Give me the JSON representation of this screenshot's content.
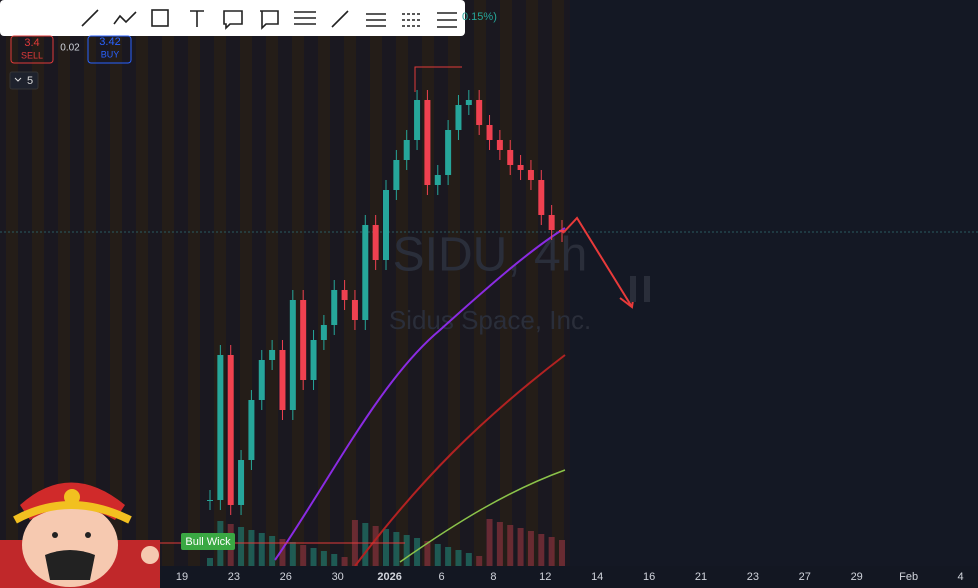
{
  "toolbar": {
    "change": "0.15%)"
  },
  "trade": {
    "sell_price": "3.4",
    "sell_label": "SELL",
    "spread": "0.02",
    "buy_price": "3.42",
    "buy_label": "BUY",
    "interval_menu": "5"
  },
  "watermark": {
    "symbol": "SIDU, 4h",
    "company": "Sidus Space, Inc."
  },
  "annotation": "Bull Wick",
  "chart": {
    "closes": [
      0.74,
      2.19,
      0.69,
      1.14,
      1.74,
      2.14,
      2.24,
      1.64,
      2.74,
      1.94,
      2.34,
      2.49,
      2.84,
      2.74,
      2.54,
      3.49,
      3.14,
      3.84,
      4.14,
      4.34,
      4.74,
      3.89,
      3.99,
      4.44,
      4.69,
      4.74,
      4.49,
      4.34,
      4.24,
      4.09,
      4.04,
      3.94,
      3.59,
      3.44,
      3.42
    ]
  },
  "x_axis": {
    "labels": [
      "19",
      "23",
      "26",
      "30",
      "2026",
      "6",
      "8",
      "12",
      "14",
      "16",
      "21",
      "23",
      "27",
      "29",
      "Feb",
      "4"
    ]
  }
}
